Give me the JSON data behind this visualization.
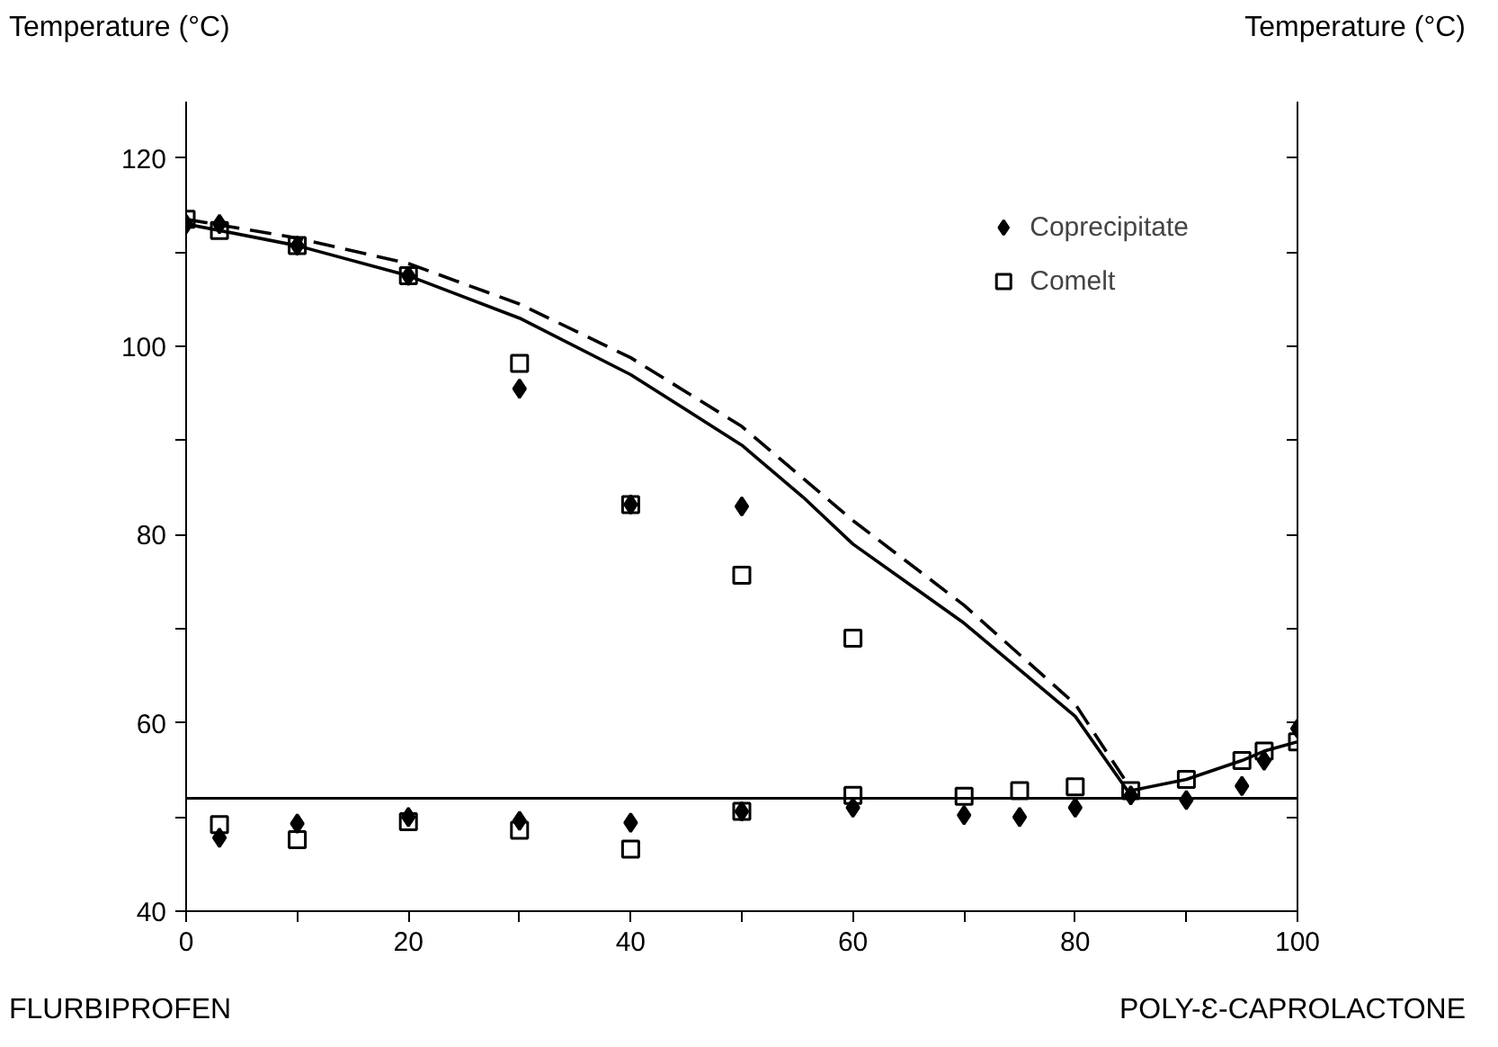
{
  "chart_data": {
    "type": "scatter",
    "ylabel": "Temperature (°C)",
    "y2label": "Temperature (°C)",
    "annotations": [
      "FLURBIPROFEN",
      "POLY-Ɛ-CAPROLACTONE"
    ],
    "xlim": [
      0,
      100
    ],
    "xticks": [
      0,
      {
        "value": 10,
        "label": null
      },
      20,
      {
        "value": 30,
        "label": null
      },
      40,
      {
        "value": 50,
        "label": null
      },
      60,
      {
        "value": 70,
        "label": null
      },
      80,
      {
        "value": 90,
        "label": null
      },
      100
    ],
    "ylim": [
      40,
      126
    ],
    "yticks": [
      40,
      {
        "value": 50,
        "label": null
      },
      60,
      {
        "value": 70,
        "label": null
      },
      80,
      {
        "value": 90,
        "label": null
      },
      100,
      {
        "value": 110,
        "label": null
      },
      120
    ],
    "grid": false,
    "legend": "top right",
    "ref_lines": [
      {
        "axis": "y",
        "value": 52,
        "color": "#000000",
        "line_style": "solid"
      }
    ],
    "series": [
      {
        "name": "Coprecipitate",
        "marker": "diamond",
        "color": "#000000",
        "x": [
          0,
          3,
          10,
          20,
          30,
          40,
          50,
          3,
          10,
          20,
          30,
          40,
          50,
          60,
          70,
          75,
          80,
          85,
          90,
          95,
          97,
          100
        ],
        "values": [
          113,
          113,
          110.7,
          107.5,
          95.5,
          83.2,
          83,
          47.8,
          49.3,
          50,
          49.6,
          49.4,
          50.6,
          51,
          50.2,
          50,
          51,
          52.3,
          51.8,
          53.3,
          56,
          59.4
        ]
      },
      {
        "name": "Comelt",
        "marker": "square",
        "color": "#000000",
        "x": [
          0,
          3,
          10,
          20,
          30,
          40,
          50,
          60,
          3,
          10,
          20,
          30,
          40,
          50,
          60,
          70,
          75,
          80,
          85,
          90,
          95,
          97,
          100
        ],
        "values": [
          113.5,
          112.3,
          110.7,
          107.5,
          98.2,
          83.2,
          75.7,
          69,
          49.2,
          47.6,
          49.5,
          48.6,
          46.6,
          50.6,
          52.3,
          52.2,
          52.8,
          53.2,
          52.8,
          54,
          56,
          57,
          58
        ]
      },
      {
        "type": "line",
        "line_style": "solid",
        "color": "#000000",
        "x": [
          0,
          10,
          20,
          30,
          40,
          50,
          55.5,
          60,
          70,
          80,
          85
        ],
        "values": [
          113,
          110.7,
          107.5,
          103,
          97,
          89.5,
          84,
          79,
          70.6,
          60.7,
          52.3
        ]
      },
      {
        "type": "line",
        "line_style": "dashed",
        "color": "#000000",
        "x": [
          0,
          10,
          20,
          30,
          40,
          50,
          60,
          70,
          80,
          85
        ],
        "values": [
          113.5,
          111.5,
          108.8,
          104.5,
          98.8,
          91.5,
          81.5,
          72.5,
          62,
          53
        ]
      },
      {
        "type": "line",
        "line_style": "solid",
        "color": "#000000",
        "x": [
          85,
          90,
          95,
          97,
          100
        ],
        "values": [
          52.8,
          54,
          56,
          57,
          58
        ]
      }
    ]
  }
}
